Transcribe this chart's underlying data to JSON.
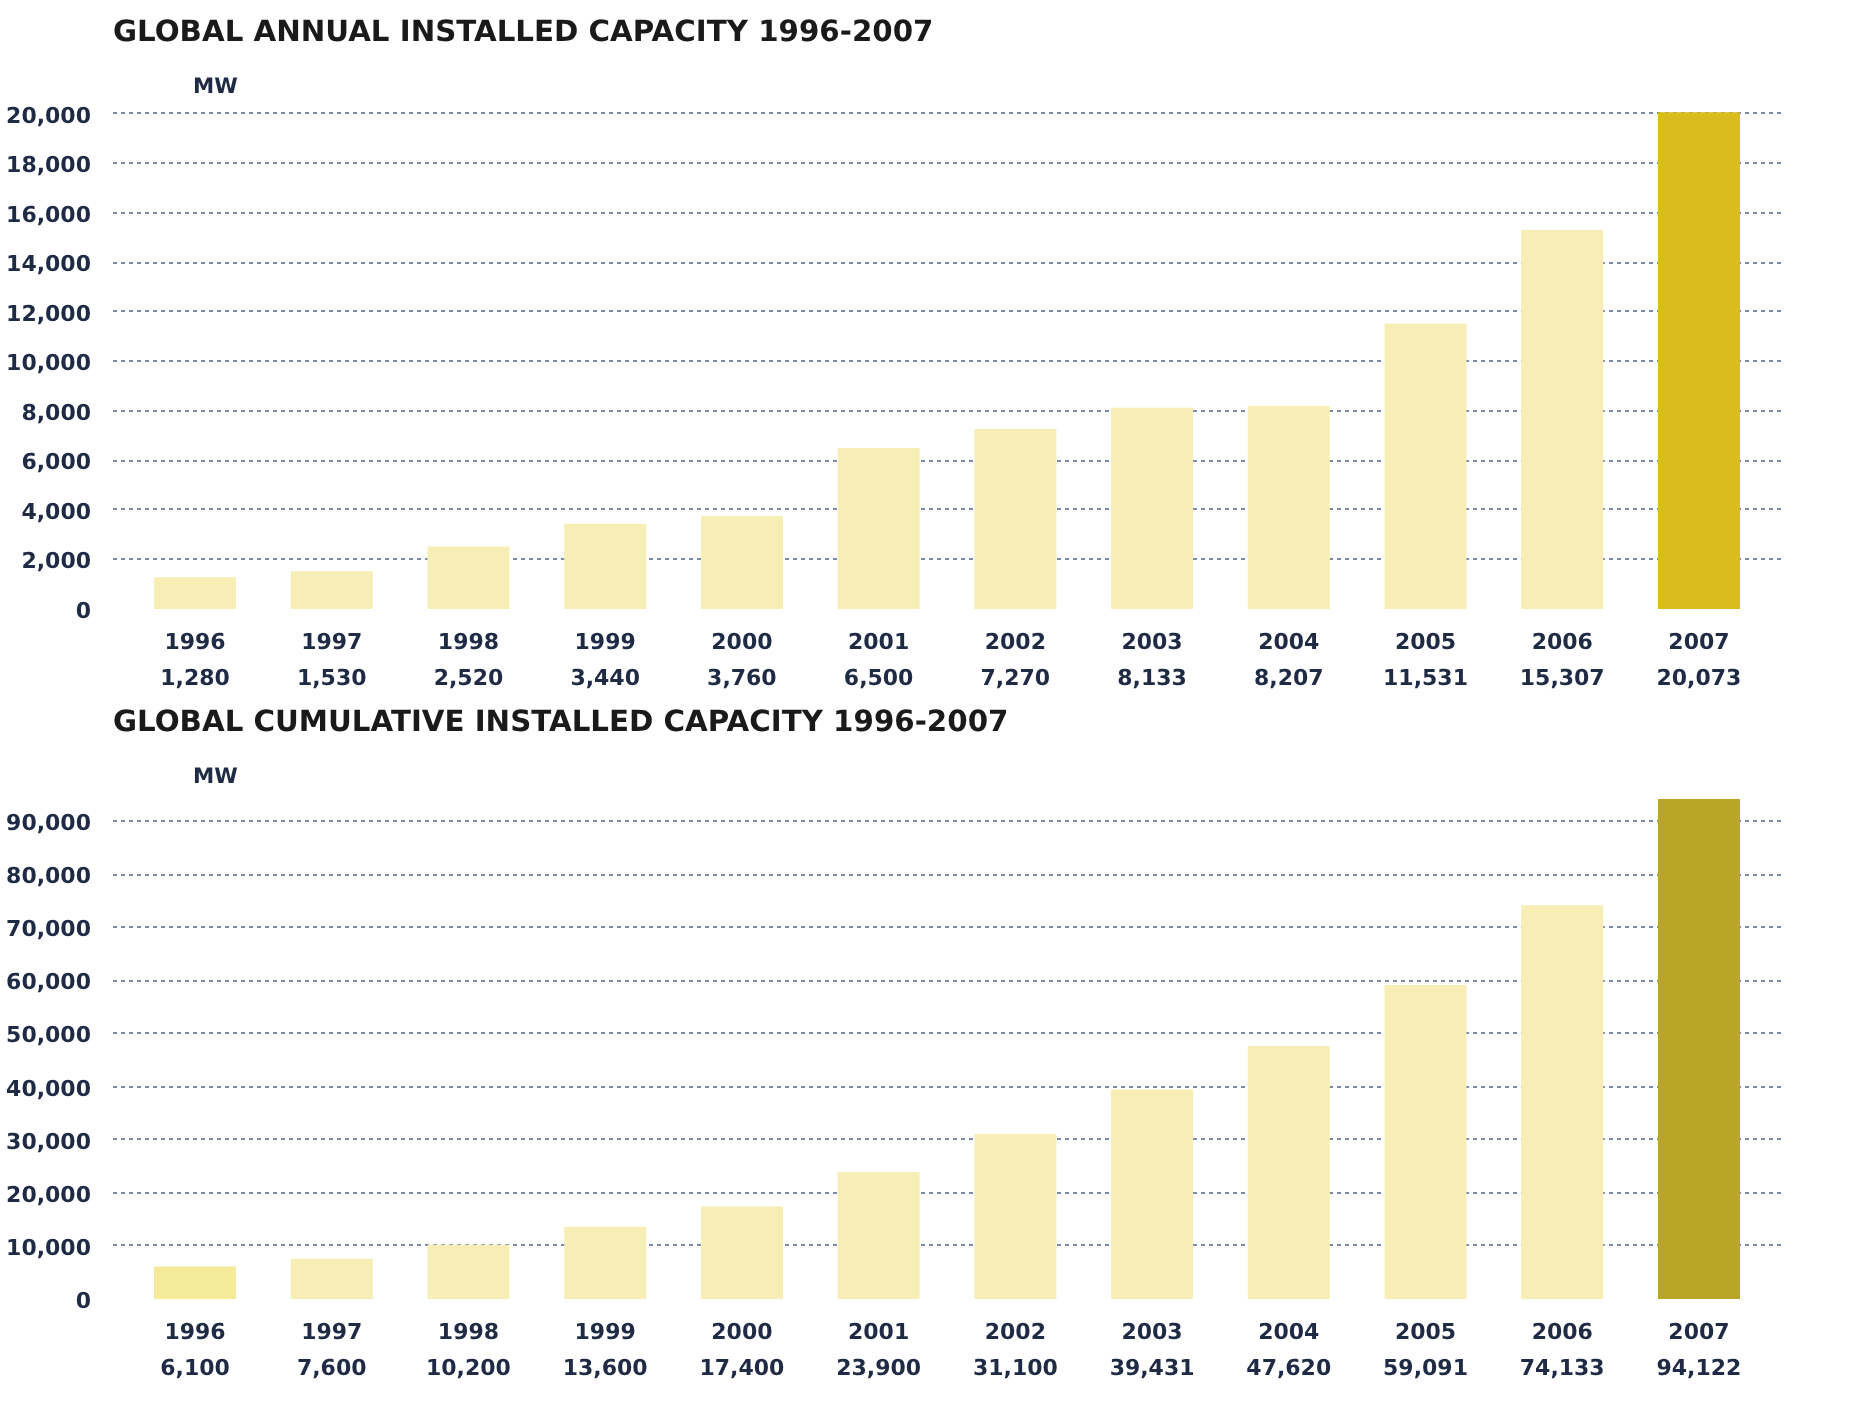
{
  "chart_data": [
    {
      "type": "bar",
      "title": "GLOBAL ANNUAL INSTALLED CAPACITY 1996-2007",
      "ylabel": "MW",
      "categories": [
        "1996",
        "1997",
        "1998",
        "1999",
        "2000",
        "2001",
        "2002",
        "2003",
        "2004",
        "2005",
        "2006",
        "2007"
      ],
      "values": [
        1280,
        1530,
        2520,
        3440,
        3760,
        6500,
        7270,
        8133,
        8207,
        11531,
        15307,
        20073
      ],
      "value_labels": [
        "1,280",
        "1,530",
        "2,520",
        "3,440",
        "3,760",
        "6,500",
        "7,270",
        "8,133",
        "8,207",
        "11,531",
        "15,307",
        "20,073"
      ],
      "colors": [
        "#f7eeb5",
        "#f7eeb5",
        "#f7eeb5",
        "#f7eeb5",
        "#f7eeb5",
        "#f7eeb5",
        "#f7eeb5",
        "#f7eeb5",
        "#f7eeb5",
        "#f7eeb5",
        "#f7eeb5",
        "#d9bd1c"
      ],
      "ylim": [
        0,
        20200
      ],
      "yticks": [
        0,
        {
          "value": 2000,
          "label": "2,000"
        },
        {
          "value": 4000,
          "label": "4,000"
        },
        {
          "value": 6000,
          "label": "6,000"
        },
        {
          "value": 8000,
          "label": "8,000"
        },
        {
          "value": 10000,
          "label": "10,000"
        },
        {
          "value": 12000,
          "label": "12,000"
        },
        {
          "value": 14000,
          "label": "14,000"
        },
        {
          "value": 16000,
          "label": "16,000"
        },
        {
          "value": 18000,
          "label": "18,000"
        },
        {
          "value": 20000,
          "label": "20,000"
        }
      ],
      "grid": "y"
    },
    {
      "type": "bar",
      "title": "GLOBAL CUMULATIVE INSTALLED CAPACITY 1996-2007",
      "ylabel": "MW",
      "categories": [
        "1996",
        "1997",
        "1998",
        "1999",
        "2000",
        "2001",
        "2002",
        "2003",
        "2004",
        "2005",
        "2006",
        "2007"
      ],
      "values": [
        6100,
        7600,
        10200,
        13600,
        17400,
        23900,
        31100,
        39431,
        47620,
        59091,
        74133,
        94122
      ],
      "value_labels": [
        "6,100",
        "7,600",
        "10,200",
        "13,600",
        "17,400",
        "23,900",
        "31,100",
        "39,431",
        "47,620",
        "59,091",
        "74,133",
        "94,122"
      ],
      "colors": [
        "#f5ea9a",
        "#f7eeb5",
        "#f7eeb5",
        "#f7eeb5",
        "#f7eeb5",
        "#f7eeb5",
        "#f7eeb5",
        "#f7eeb5",
        "#f7eeb5",
        "#f7eeb5",
        "#f7eeb5",
        "#b9a626"
      ],
      "ylim": [
        0,
        94122
      ],
      "yticks": [
        0,
        {
          "value": 10000,
          "label": "10,000"
        },
        {
          "value": 20000,
          "label": "20,000"
        },
        {
          "value": 30000,
          "label": "30,000"
        },
        {
          "value": 40000,
          "label": "40,000"
        },
        {
          "value": 50000,
          "label": "50,000"
        },
        {
          "value": 60000,
          "label": "60,000"
        },
        {
          "value": 70000,
          "label": "70,000"
        },
        {
          "value": 80000,
          "label": "80,000"
        },
        {
          "value": 90000,
          "label": "90,000"
        }
      ],
      "grid": "y"
    }
  ]
}
